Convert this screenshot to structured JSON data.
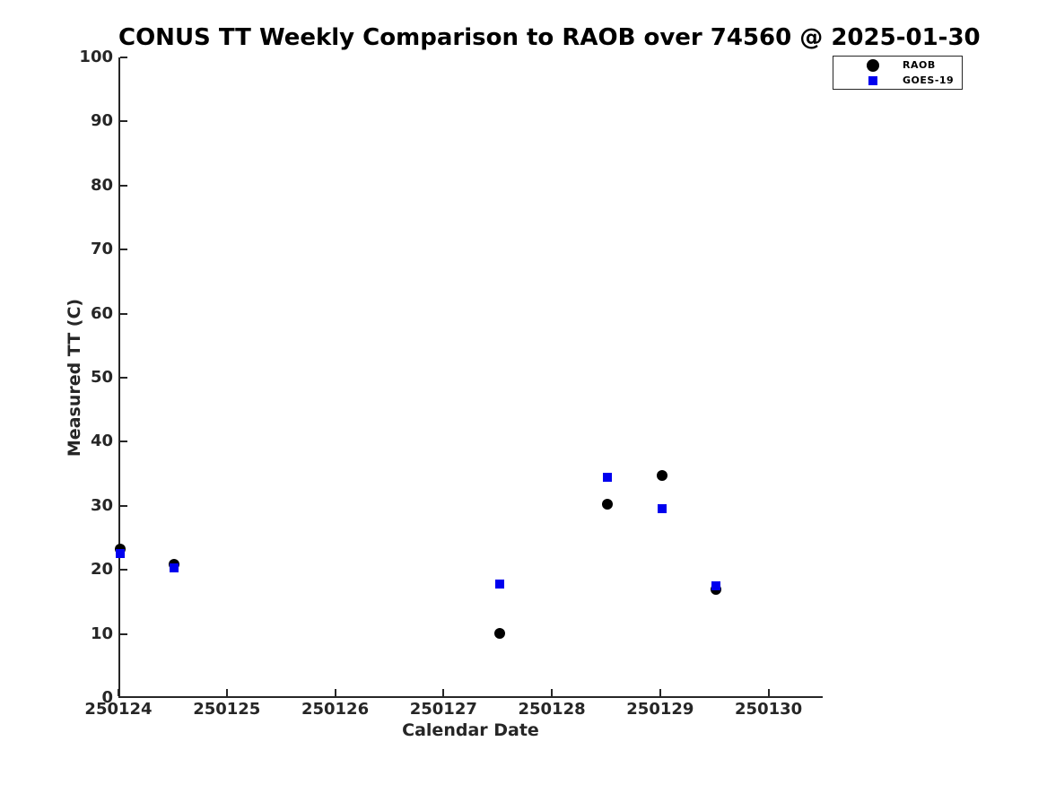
{
  "title": "CONUS TT Weekly Comparison to RAOB over 74560 @ 2025-01-30",
  "colors": {
    "background": "#ffffff",
    "axis": "#262626",
    "title_text": "#000000",
    "raob_marker": "#000000",
    "goes_marker": "#0000ee"
  },
  "chart_data": {
    "type": "scatter",
    "title": "CONUS TT Weekly Comparison to RAOB over 74560 @ 2025-01-30",
    "xlabel": "Calendar Date",
    "ylabel": "Measured TT (C)",
    "xlim": [
      250124,
      250130.5
    ],
    "ylim": [
      0,
      100
    ],
    "xticks": [
      250124,
      250125,
      250126,
      250127,
      250128,
      250129,
      250130
    ],
    "yticks": [
      0,
      10,
      20,
      30,
      40,
      50,
      60,
      70,
      80,
      90,
      100
    ],
    "grid": false,
    "legend_position": "top-right",
    "series": [
      {
        "name": "RAOB",
        "marker": "circle",
        "color": "#000000",
        "marker_size": 12,
        "points": [
          [
            250124.0,
            23.3
          ],
          [
            250124.5,
            20.8
          ],
          [
            250127.5,
            10.1
          ],
          [
            250128.5,
            30.3
          ],
          [
            250129.0,
            34.8
          ],
          [
            250129.5,
            17.0
          ]
        ]
      },
      {
        "name": "GOES-19",
        "marker": "square",
        "color": "#0000ee",
        "marker_size": 10,
        "points": [
          [
            250124.0,
            22.5
          ],
          [
            250124.5,
            20.3
          ],
          [
            250127.5,
            17.8
          ],
          [
            250128.5,
            34.5
          ],
          [
            250129.0,
            29.5
          ],
          [
            250129.5,
            17.5
          ]
        ]
      }
    ]
  }
}
